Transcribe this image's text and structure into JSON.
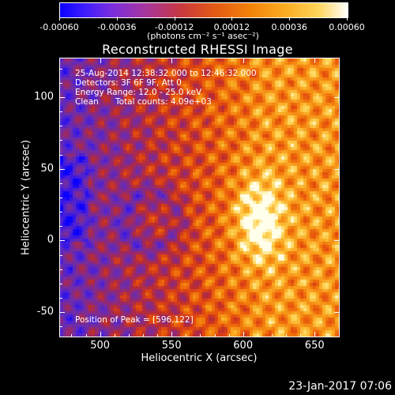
{
  "chart_data": {
    "type": "heatmap",
    "title": "Reconstructed RHESSI Image",
    "xlabel": "Heliocentric X (arcsec)",
    "ylabel": "Heliocentric Y (arcsec)",
    "xlim": [
      472,
      667
    ],
    "ylim": [
      -67,
      127
    ],
    "x_ticks": [
      500,
      550,
      600,
      650
    ],
    "y_ticks": [
      -50,
      0,
      50,
      100
    ],
    "colorbar": {
      "ticks": [
        "-0.00060",
        "-0.00036",
        "-0.00012",
        "0.00012",
        "0.00036",
        "0.00060"
      ],
      "range": [
        -0.0006,
        0.0006
      ],
      "units": "(photons cm⁻² s⁻¹ asec⁻²)",
      "colors": [
        "#0a00ff",
        "#7a2ee0",
        "#c8383f",
        "#f2820a",
        "#fed65c",
        "#ffffff"
      ]
    },
    "annotations": {
      "time_range": "25-Aug-2014 12:38:32.000 to 12:46:32.000",
      "detectors": "Detectors: 3F 6F 9F, Att 0",
      "energy": "Energy Range: 12.0 - 25.0 keV",
      "method": "Clean",
      "counts": "Total counts: 4.09e+03",
      "peak": "Position of Peak = [596,122]"
    }
  },
  "footer": {
    "date": "23-Jan-2017 07:06"
  }
}
